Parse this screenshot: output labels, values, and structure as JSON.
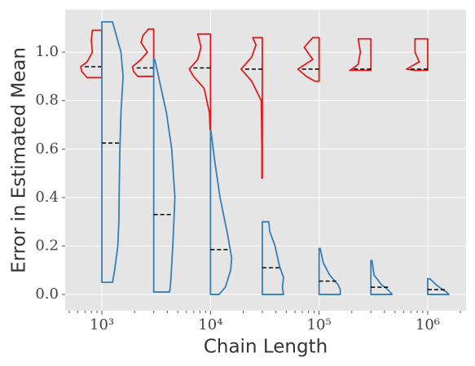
{
  "chart_data": {
    "type": "violin",
    "xlabel": "Chain Length",
    "ylabel": "Error in Estimated Mean",
    "xscale": "log",
    "grid": true,
    "xlim": [
      459,
      2254000
    ],
    "ylim": [
      -0.067,
      1.175
    ],
    "xticks": [
      {
        "value": 1000,
        "label": "10³"
      },
      {
        "value": 10000,
        "label": "10⁴"
      },
      {
        "value": 100000,
        "label": "10⁵"
      },
      {
        "value": 1000000,
        "label": "10⁶"
      }
    ],
    "xminorticks": [
      500,
      600,
      700,
      800,
      900,
      2000,
      3000,
      4000,
      5000,
      6000,
      7000,
      8000,
      9000,
      20000,
      30000,
      40000,
      50000,
      60000,
      70000,
      80000,
      90000,
      200000,
      300000,
      400000,
      500000,
      600000,
      700000,
      800000,
      900000,
      2000000
    ],
    "yticks": [
      {
        "value": 0,
        "label": "0.0"
      },
      {
        "value": 0.2,
        "label": "0.2"
      },
      {
        "value": 0.4,
        "label": "0.4"
      },
      {
        "value": 0.6,
        "label": "0.6"
      },
      {
        "value": 0.8,
        "label": "0.8"
      },
      {
        "value": 1.0,
        "label": "1.0"
      }
    ],
    "series": [
      {
        "color": "#e41a1c",
        "side": "left",
        "violins": [
          {
            "x": 1000,
            "median": 0.94,
            "y": [
              0.895,
              0.92,
              0.94,
              0.96,
              1.0,
              1.05,
              1.09
            ],
            "density": [
              0.7,
              0.95,
              1.0,
              0.7,
              0.45,
              0.5,
              0.45
            ]
          },
          {
            "x": 3000,
            "median": 0.935,
            "y": [
              0.9,
              0.92,
              0.94,
              0.97,
              1.0,
              1.04,
              1.07,
              1.095
            ],
            "density": [
              0.75,
              0.95,
              1.0,
              0.6,
              0.3,
              0.6,
              0.5,
              0.25
            ]
          },
          {
            "x": 10000,
            "median": 0.935,
            "y": [
              0.68,
              0.75,
              0.85,
              0.9,
              0.93,
              0.97,
              1.02,
              1.075
            ],
            "density": [
              0.02,
              0.05,
              0.3,
              0.8,
              1.0,
              0.6,
              0.45,
              0.6
            ]
          },
          {
            "x": 30000,
            "median": 0.93,
            "y": [
              0.48,
              0.6,
              0.8,
              0.88,
              0.93,
              0.98,
              1.03,
              1.06
            ],
            "density": [
              0.02,
              0.02,
              0.05,
              0.5,
              1.0,
              0.5,
              0.3,
              0.45
            ]
          },
          {
            "x": 100000,
            "median": 0.93,
            "y": [
              0.88,
              0.9,
              0.93,
              0.97,
              1.02,
              1.06
            ],
            "density": [
              0.2,
              0.6,
              1.0,
              0.3,
              0.7,
              0.3
            ]
          },
          {
            "x": 300000,
            "median": 0.93,
            "y": [
              0.925,
              0.93,
              0.95,
              1.0,
              1.055
            ],
            "density": [
              1.0,
              0.9,
              0.6,
              0.5,
              0.6
            ]
          },
          {
            "x": 1000000,
            "median": 0.93,
            "y": [
              0.925,
              0.93,
              0.96,
              1.0,
              1.055
            ],
            "density": [
              0.6,
              1.0,
              0.4,
              0.6,
              0.6
            ]
          }
        ]
      },
      {
        "color": "#377eb8",
        "side": "right",
        "violins": [
          {
            "x": 1000,
            "median": 0.625,
            "y": [
              0.05,
              0.1,
              0.2,
              0.3,
              0.45,
              0.6,
              0.75,
              0.9,
              1.0,
              1.125
            ],
            "density": [
              0.5,
              0.6,
              0.75,
              0.8,
              0.82,
              0.85,
              0.9,
              1.0,
              0.9,
              0.5
            ]
          },
          {
            "x": 3000,
            "median": 0.33,
            "y": [
              0.01,
              0.05,
              0.2,
              0.4,
              0.6,
              0.75,
              0.85,
              0.97
            ],
            "density": [
              0.75,
              0.8,
              0.9,
              1.0,
              0.85,
              0.6,
              0.35,
              0.05
            ]
          },
          {
            "x": 10000,
            "median": 0.185,
            "y": [
              0,
              0.03,
              0.1,
              0.15,
              0.25,
              0.4,
              0.55,
              0.675
            ],
            "density": [
              0.4,
              0.7,
              0.95,
              1.0,
              0.8,
              0.45,
              0.2,
              0.02
            ]
          },
          {
            "x": 30000,
            "median": 0.11,
            "y": [
              0,
              0.03,
              0.07,
              0.12,
              0.2,
              0.26,
              0.3
            ],
            "density": [
              1.0,
              0.95,
              1.0,
              0.8,
              0.6,
              0.35,
              0.3
            ]
          },
          {
            "x": 100000,
            "median": 0.055,
            "y": [
              0,
              0.02,
              0.04,
              0.08,
              0.13,
              0.19
            ],
            "density": [
              1.0,
              1.0,
              0.9,
              0.5,
              0.2,
              0.05
            ]
          },
          {
            "x": 300000,
            "median": 0.03,
            "y": [
              0,
              0.01,
              0.02,
              0.04,
              0.08,
              0.14
            ],
            "density": [
              1.0,
              0.9,
              0.8,
              0.5,
              0.15,
              0.05
            ]
          },
          {
            "x": 1000000,
            "median": 0.02,
            "y": [
              0,
              0.01,
              0.02,
              0.04,
              0.065
            ],
            "density": [
              1.0,
              0.9,
              0.7,
              0.4,
              0.1
            ]
          }
        ]
      }
    ]
  }
}
